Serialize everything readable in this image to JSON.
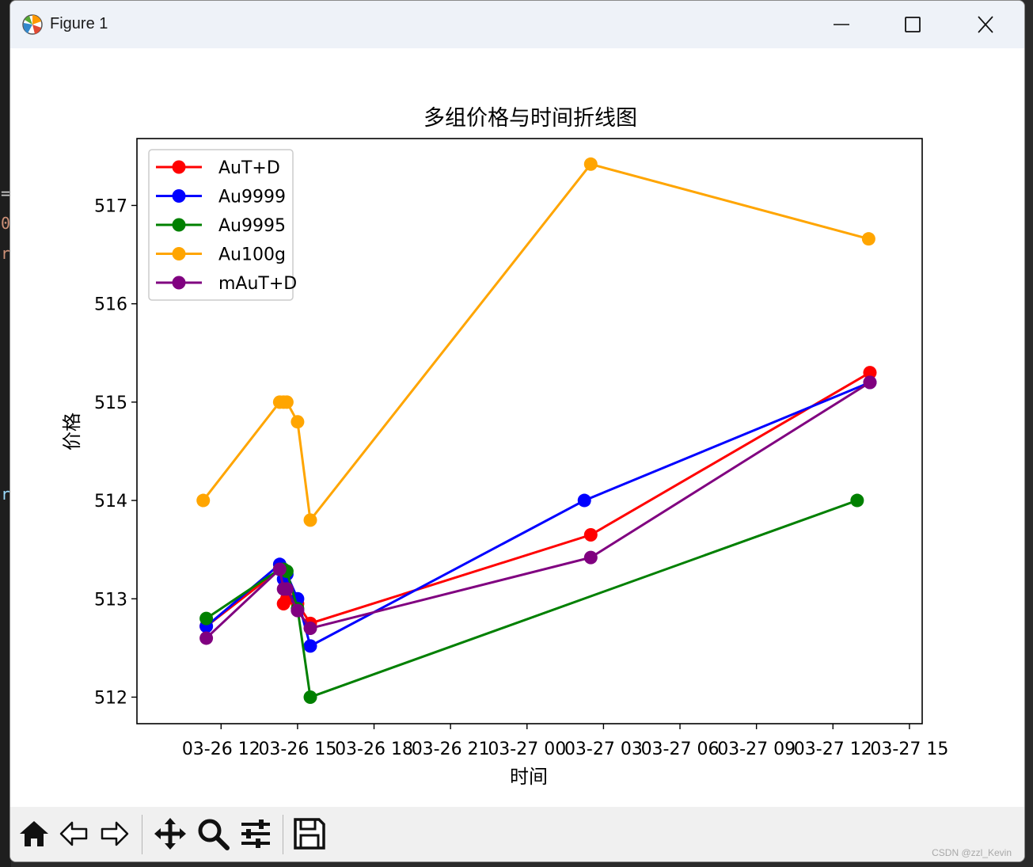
{
  "window": {
    "title": "Figure 1"
  },
  "colors": {
    "AuT+D": "#ff0000",
    "Au9999": "#0000ff",
    "Au9995": "#008000",
    "Au100g": "#ffa500",
    "mAuT+D": "#800080"
  },
  "icons": {
    "app": "matplotlib-icon",
    "minimize": "minimize-icon",
    "maximize": "maximize-icon",
    "close": "close-icon",
    "home": "home-icon",
    "back": "back-arrow-icon",
    "forward": "forward-arrow-icon",
    "pan": "move-icon",
    "zoom": "magnifier-icon",
    "configure": "sliders-icon",
    "save": "floppy-disk-icon"
  },
  "chart_data": {
    "type": "line",
    "title": "多组价格与时间折线图",
    "xlabel": "时间",
    "ylabel": "价格",
    "x_tick_labels": [
      "03-26 12",
      "03-26 15",
      "03-26 18",
      "03-26 21",
      "03-27 00",
      "03-27 03",
      "03-27 06",
      "03-27 09",
      "03-27 12",
      "03-27 15"
    ],
    "yticks": [
      512,
      513,
      514,
      515,
      516,
      517
    ],
    "ylim": [
      511.73,
      517.68
    ],
    "legend_position": "top-left",
    "grid": false,
    "marker": "circle",
    "series": [
      {
        "name": "AuT+D",
        "x": [
          11.42,
          14.3,
          14.45,
          14.58,
          15.0,
          15.5,
          26.5,
          37.45
        ],
        "y": [
          512.72,
          513.3,
          512.95,
          513.0,
          512.95,
          512.75,
          513.65,
          515.3
        ]
      },
      {
        "name": "Au9999",
        "x": [
          11.42,
          14.3,
          14.45,
          14.58,
          15.0,
          15.5,
          26.25,
          37.45
        ],
        "y": [
          512.72,
          513.35,
          513.2,
          513.25,
          513.0,
          512.52,
          514.0,
          515.2
        ]
      },
      {
        "name": "Au9995",
        "x": [
          11.42,
          14.3,
          14.45,
          14.58,
          15.0,
          15.5,
          36.95
        ],
        "y": [
          512.8,
          513.3,
          513.3,
          513.28,
          512.9,
          512.0,
          514.0
        ]
      },
      {
        "name": "Au100g",
        "x": [
          11.3,
          14.3,
          14.45,
          14.58,
          15.0,
          15.5,
          26.5,
          37.4
        ],
        "y": [
          514.0,
          515.0,
          515.0,
          515.0,
          514.8,
          513.8,
          517.42,
          516.66
        ]
      },
      {
        "name": "mAuT+D",
        "x": [
          11.42,
          14.3,
          14.45,
          14.58,
          15.0,
          15.5,
          26.5,
          37.45
        ],
        "y": [
          512.6,
          513.3,
          513.1,
          513.1,
          512.88,
          512.7,
          513.42,
          515.2
        ]
      }
    ]
  },
  "watermark": "CSDN @zzl_Kevin"
}
